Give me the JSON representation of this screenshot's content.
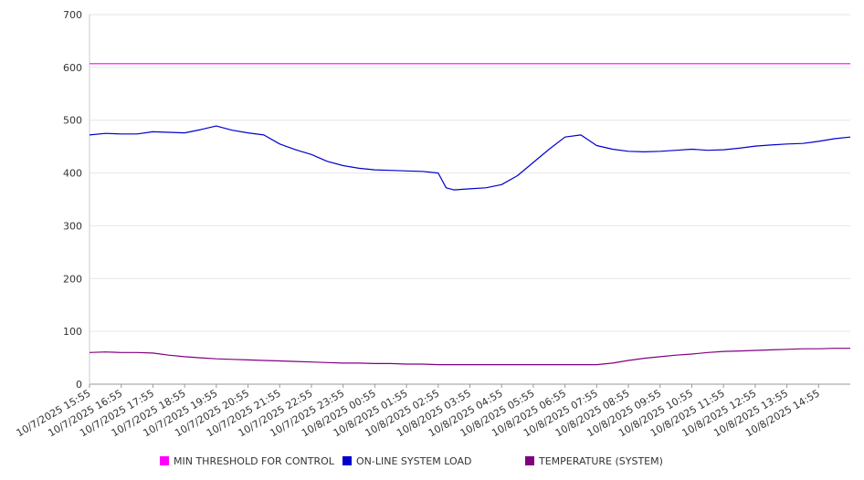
{
  "chart_data": {
    "type": "line",
    "ylim": [
      0,
      700
    ],
    "y_ticks": [
      "0",
      "100",
      "200",
      "300",
      "400",
      "500",
      "600",
      "700"
    ],
    "x_ticks": [
      "10/7/2025 15:55",
      "10/7/2025 16:55",
      "10/7/2025 17:55",
      "10/7/2025 18:55",
      "10/7/2025 19:55",
      "10/7/2025 20:55",
      "10/7/2025 21:55",
      "10/7/2025 22:55",
      "10/7/2025 23:55",
      "10/8/2025 00:55",
      "10/8/2025 01:55",
      "10/8/2025 02:55",
      "10/8/2025 03:55",
      "10/8/2025 04:55",
      "10/8/2025 05:55",
      "10/8/2025 06:55",
      "10/8/2025 07:55",
      "10/8/2025 08:55",
      "10/8/2025 09:55",
      "10/8/2025 10:55",
      "10/8/2025 11:55",
      "10/8/2025 12:55",
      "10/8/2025 13:55",
      "10/8/2025 14:55"
    ],
    "x": [
      "10/7/2025 15:55",
      "10/7/2025 16:25",
      "10/7/2025 16:55",
      "10/7/2025 17:25",
      "10/7/2025 17:55",
      "10/7/2025 18:25",
      "10/7/2025 18:55",
      "10/7/2025 19:25",
      "10/7/2025 19:55",
      "10/7/2025 20:25",
      "10/7/2025 20:55",
      "10/7/2025 21:25",
      "10/7/2025 21:55",
      "10/7/2025 22:25",
      "10/7/2025 22:55",
      "10/7/2025 23:25",
      "10/7/2025 23:55",
      "10/8/2025 00:25",
      "10/8/2025 00:55",
      "10/8/2025 01:25",
      "10/8/2025 01:55",
      "10/8/2025 02:25",
      "10/8/2025 02:55",
      "10/8/2025 03:10",
      "10/8/2025 03:25",
      "10/8/2025 03:55",
      "10/8/2025 04:25",
      "10/8/2025 04:55",
      "10/8/2025 05:25",
      "10/8/2025 05:55",
      "10/8/2025 06:25",
      "10/8/2025 06:55",
      "10/8/2025 07:25",
      "10/8/2025 07:55",
      "10/8/2025 08:25",
      "10/8/2025 08:55",
      "10/8/2025 09:25",
      "10/8/2025 09:55",
      "10/8/2025 10:25",
      "10/8/2025 10:55",
      "10/8/2025 11:25",
      "10/8/2025 11:55",
      "10/8/2025 12:25",
      "10/8/2025 12:55",
      "10/8/2025 13:25",
      "10/8/2025 13:55",
      "10/8/2025 14:25",
      "10/8/2025 14:55",
      "10/8/2025 15:25",
      "10/8/2025 15:55"
    ],
    "series": [
      {
        "name": "MIN THRESHOLD FOR CONTROL",
        "color": "#ff00ff",
        "values": [
          607,
          607,
          607,
          607,
          607,
          607,
          607,
          607,
          607,
          607,
          607,
          607,
          607,
          607,
          607,
          607,
          607,
          607,
          607,
          607,
          607,
          607,
          607,
          607,
          607,
          607,
          607,
          607,
          607,
          607,
          607,
          607,
          607,
          607,
          607,
          607,
          607,
          607,
          607,
          607,
          607,
          607,
          607,
          607,
          607,
          607,
          607,
          607,
          607,
          607
        ]
      },
      {
        "name": "ON-LINE SYSTEM LOAD",
        "color": "#0000cc",
        "values": [
          472,
          475,
          474,
          474,
          478,
          477,
          476,
          482,
          489,
          481,
          476,
          472,
          455,
          444,
          435,
          422,
          414,
          409,
          406,
          405,
          404,
          403,
          400,
          372,
          368,
          370,
          372,
          378,
          395,
          420,
          445,
          468,
          472,
          452,
          445,
          441,
          440,
          441,
          443,
          445,
          443,
          444,
          447,
          451,
          453,
          455,
          456,
          460,
          465,
          468
        ]
      },
      {
        "name": "TEMPERATURE (SYSTEM)",
        "color": "#800080",
        "values": [
          60,
          61,
          60,
          60,
          59,
          55,
          52,
          50,
          48,
          47,
          46,
          45,
          44,
          43,
          42,
          41,
          40,
          40,
          39,
          39,
          38,
          38,
          37,
          37,
          37,
          37,
          37,
          37,
          37,
          37,
          37,
          37,
          37,
          37,
          40,
          45,
          49,
          52,
          55,
          57,
          60,
          62,
          63,
          64,
          65,
          66,
          67,
          67,
          68,
          68
        ]
      }
    ]
  }
}
